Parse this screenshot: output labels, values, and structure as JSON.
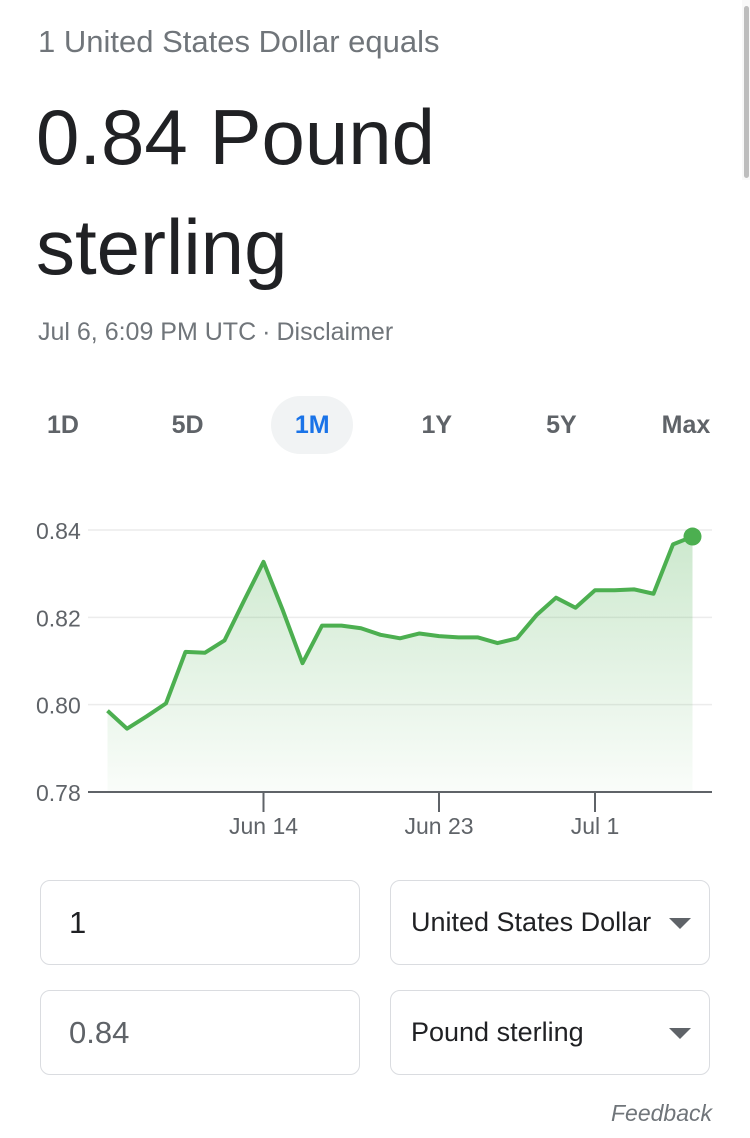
{
  "header": {
    "subtitle": "1 United States Dollar equals",
    "result": "0.84 Pound sterling",
    "timestamp": "Jul 6, 6:09 PM UTC",
    "separator": "·",
    "disclaimer": "Disclaimer"
  },
  "range_tabs": [
    {
      "label": "1D",
      "active": false
    },
    {
      "label": "5D",
      "active": false
    },
    {
      "label": "1M",
      "active": true
    },
    {
      "label": "1Y",
      "active": false
    },
    {
      "label": "5Y",
      "active": false
    },
    {
      "label": "Max",
      "active": false
    }
  ],
  "chart_data": {
    "type": "area",
    "title": "",
    "xlabel": "",
    "ylabel": "",
    "ylim": [
      0.78,
      0.84
    ],
    "y_ticks": [
      "0.84",
      "0.82",
      "0.80",
      "0.78"
    ],
    "x_ticks": [
      {
        "label": "Jun 14",
        "day": 14
      },
      {
        "label": "Jun 23",
        "day": 23
      },
      {
        "label": "Jul 1",
        "day": 31
      }
    ],
    "grid": true,
    "x_days": [
      6,
      7,
      8,
      9,
      10,
      11,
      12,
      13,
      14,
      15,
      16,
      17,
      18,
      19,
      20,
      21,
      22,
      23,
      24,
      25,
      26,
      27,
      28,
      29,
      30,
      31,
      32,
      33,
      34,
      35,
      36
    ],
    "values": [
      0.7986,
      0.7945,
      0.7973,
      0.8003,
      0.8121,
      0.8119,
      0.8147,
      0.8238,
      0.8327,
      0.8215,
      0.8095,
      0.8181,
      0.8181,
      0.8175,
      0.816,
      0.8152,
      0.8163,
      0.8157,
      0.8154,
      0.8154,
      0.8141,
      0.8152,
      0.8205,
      0.8245,
      0.8222,
      0.8262,
      0.8262,
      0.8264,
      0.8254,
      0.8367,
      0.8385
    ],
    "line_color": "#4caf50",
    "fill_color": "#4caf50"
  },
  "converter": {
    "from_amount": "1",
    "from_currency": "United States Dollar",
    "to_amount": "0.84",
    "to_currency": "Pound sterling"
  },
  "footer": {
    "feedback": "Feedback"
  }
}
